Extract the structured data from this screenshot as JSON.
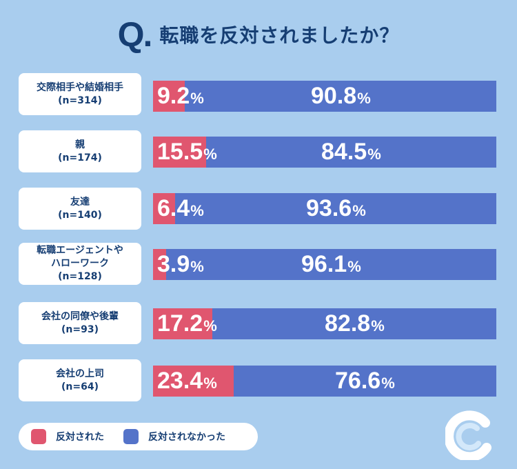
{
  "title": {
    "q": "Q",
    "text": "転職を反対されましたか？"
  },
  "colors": {
    "yes": "#e0566f",
    "no": "#5473c9",
    "accent": "#163e73"
  },
  "legend": [
    {
      "label": "反対された",
      "color": "#e0566f"
    },
    {
      "label": "反対されなかった",
      "color": "#5473c9"
    }
  ],
  "chart_data": {
    "type": "bar",
    "orientation": "horizontal-stacked",
    "categories": [
      {
        "lines": [
          "交際相手や結婚相手",
          "(n=314)"
        ]
      },
      {
        "lines": [
          "親",
          "(n=174)"
        ]
      },
      {
        "lines": [
          "友達",
          "(n=140)"
        ]
      },
      {
        "lines": [
          "転職エージェントや",
          "ハローワーク",
          "(n=128)"
        ]
      },
      {
        "lines": [
          "会社の同僚や後輩",
          "(n=93)"
        ]
      },
      {
        "lines": [
          "会社の上司",
          "(n=64)"
        ]
      }
    ],
    "series": [
      {
        "name": "反対された",
        "values": [
          9.2,
          15.5,
          6.4,
          3.9,
          17.2,
          23.4
        ]
      },
      {
        "name": "反対されなかった",
        "values": [
          90.8,
          84.5,
          93.6,
          96.1,
          82.8,
          76.6
        ]
      }
    ],
    "unit": "%",
    "xlim": [
      0,
      100
    ],
    "legend_position": "bottom-left"
  }
}
